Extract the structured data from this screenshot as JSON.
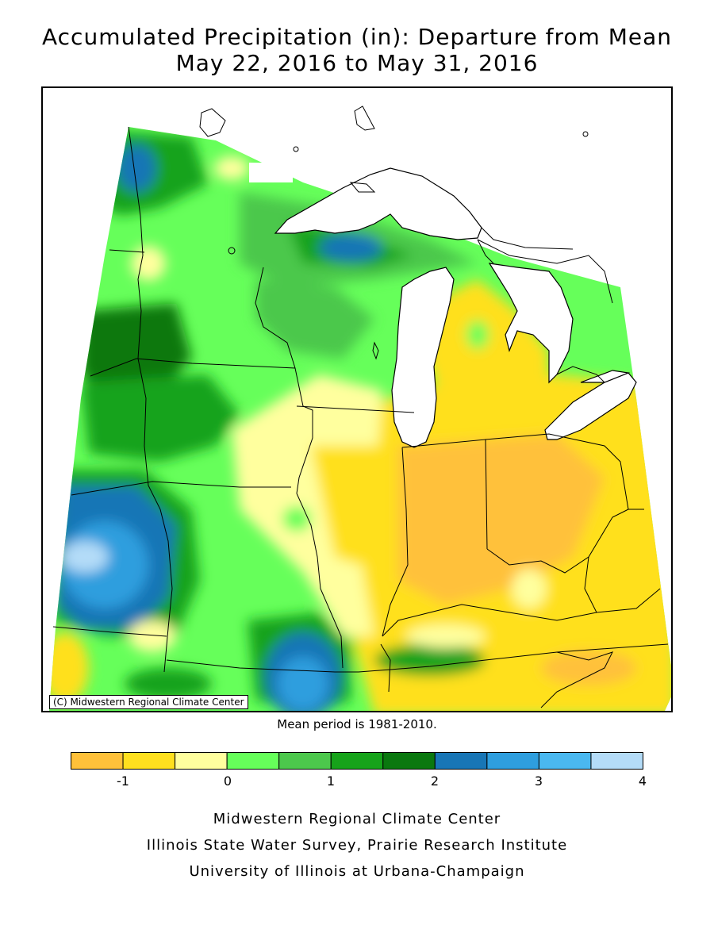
{
  "title": {
    "line1": "Accumulated Precipitation (in): Departure from Mean",
    "line2": "May 22, 2016 to May 31, 2016"
  },
  "map": {
    "copyright": "(C) Midwestern Regional Climate Center",
    "mean_period": "Mean period is 1981-2010."
  },
  "legend": {
    "tick_labels": [
      "-1",
      "0",
      "1",
      "2",
      "3",
      "4"
    ],
    "bins": [
      {
        "from": -1.5,
        "to": -1.0,
        "color": "#ffc13a"
      },
      {
        "from": -1.0,
        "to": -0.5,
        "color": "#ffe01e"
      },
      {
        "from": -0.5,
        "to": 0.0,
        "color": "#ffff9e"
      },
      {
        "from": 0.0,
        "to": 0.5,
        "color": "#66ff5a"
      },
      {
        "from": 0.5,
        "to": 1.0,
        "color": "#4cc84c"
      },
      {
        "from": 1.0,
        "to": 1.5,
        "color": "#16a31a"
      },
      {
        "from": 1.5,
        "to": 2.0,
        "color": "#0a780f"
      },
      {
        "from": 2.0,
        "to": 2.5,
        "color": "#1876b6"
      },
      {
        "from": 2.5,
        "to": 3.0,
        "color": "#2e9ede"
      },
      {
        "from": 3.0,
        "to": 3.5,
        "color": "#4ab8f0"
      },
      {
        "from": 3.5,
        "to": 4.0,
        "color": "#b4dcf8"
      }
    ]
  },
  "credits": {
    "line1": "Midwestern Regional Climate Center",
    "line2": "Illinois State Water Survey, Prairie Research Institute",
    "line3": "University of Illinois at Urbana-Champaign"
  }
}
